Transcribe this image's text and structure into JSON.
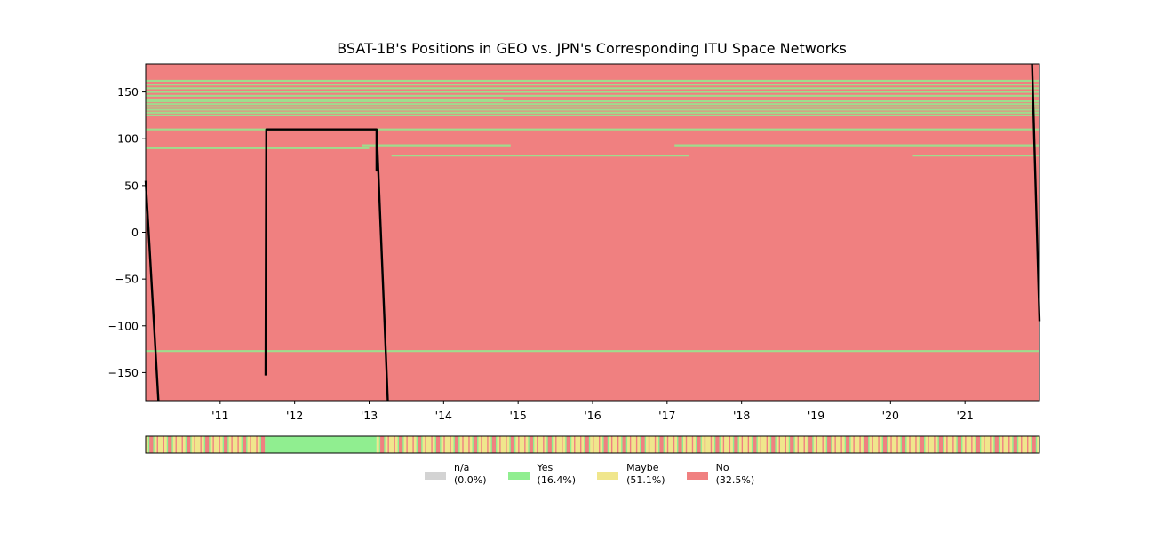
{
  "chart_data": {
    "type": "line",
    "title": "BSAT-1B's Positions in GEO vs. JPN's Corresponding ITU Space Networks",
    "xlabel": "",
    "ylabel": "",
    "xlim": [
      2010.0,
      2022.0
    ],
    "ylim": [
      -180,
      180
    ],
    "x_tick_values": [
      2011,
      2012,
      2013,
      2014,
      2015,
      2016,
      2017,
      2018,
      2019,
      2020,
      2021
    ],
    "x_tick_labels": [
      "'11",
      "'12",
      "'13",
      "'14",
      "'15",
      "'16",
      "'17",
      "'18",
      "'19",
      "'20",
      "'21"
    ],
    "y_ticks": [
      150,
      100,
      50,
      0,
      -50,
      -100,
      -150
    ],
    "y_tick_labels": [
      "150",
      "100",
      "50",
      "0",
      "−50",
      "−100",
      "−150"
    ],
    "background_color": "#f08080",
    "network_bands": [
      {
        "lon": 162,
        "start": 2010.0,
        "end": 2022.0
      },
      {
        "lon": 158,
        "start": 2010.0,
        "end": 2022.0
      },
      {
        "lon": 154,
        "start": 2010.0,
        "end": 2022.0
      },
      {
        "lon": 150,
        "start": 2010.0,
        "end": 2022.0
      },
      {
        "lon": 146,
        "start": 2010.0,
        "end": 2022.0
      },
      {
        "lon": 142,
        "start": 2010.0,
        "end": 2014.8
      },
      {
        "lon": 140,
        "start": 2010.0,
        "end": 2022.0
      },
      {
        "lon": 137,
        "start": 2010.0,
        "end": 2022.0
      },
      {
        "lon": 134,
        "start": 2010.0,
        "end": 2022.0
      },
      {
        "lon": 131,
        "start": 2010.0,
        "end": 2022.0
      },
      {
        "lon": 128,
        "start": 2010.0,
        "end": 2022.0
      },
      {
        "lon": 125,
        "start": 2010.0,
        "end": 2022.0
      },
      {
        "lon": 110,
        "start": 2010.0,
        "end": 2022.0
      },
      {
        "lon": 93,
        "start": 2012.9,
        "end": 2014.9
      },
      {
        "lon": 93,
        "start": 2017.1,
        "end": 2022.0
      },
      {
        "lon": 90,
        "start": 2010.0,
        "end": 2013.0
      },
      {
        "lon": 82,
        "start": 2013.3,
        "end": 2017.3
      },
      {
        "lon": 82,
        "start": 2020.3,
        "end": 2022.0
      },
      {
        "lon": -127,
        "start": 2010.0,
        "end": 2022.0
      }
    ],
    "series": [
      {
        "points": [
          [
            2010.0,
            55
          ],
          [
            2010.17,
            -180
          ],
          [
            2010.16,
            180
          ],
          [
            2010.41,
            -180
          ],
          [
            2010.4,
            180
          ],
          [
            2010.65,
            -180
          ],
          [
            2010.64,
            180
          ],
          [
            2010.89,
            -180
          ],
          [
            2010.88,
            180
          ],
          [
            2011.13,
            -180
          ],
          [
            2011.12,
            180
          ],
          [
            2011.37,
            -180
          ],
          [
            2011.36,
            180
          ],
          [
            2011.61,
            -153
          ],
          [
            2011.62,
            110
          ],
          [
            2013.1,
            110
          ],
          [
            2013.1,
            66
          ],
          [
            2013.1,
            110
          ],
          [
            2013.25,
            -180
          ],
          [
            2013.5,
            180
          ],
          [
            2013.75,
            -180
          ],
          [
            2013.74,
            180
          ],
          [
            2013.99,
            -180
          ],
          [
            2013.98,
            180
          ],
          [
            2014.23,
            -180
          ],
          [
            2014.22,
            180
          ],
          [
            2014.47,
            -180
          ],
          [
            2014.46,
            180
          ],
          [
            2014.71,
            -180
          ],
          [
            2014.7,
            180
          ],
          [
            2014.95,
            -180
          ],
          [
            2014.94,
            180
          ],
          [
            2015.19,
            -180
          ],
          [
            2015.18,
            180
          ],
          [
            2015.43,
            -180
          ],
          [
            2015.42,
            180
          ],
          [
            2015.67,
            -180
          ],
          [
            2015.66,
            180
          ],
          [
            2015.91,
            -180
          ],
          [
            2015.9,
            180
          ],
          [
            2016.15,
            -180
          ],
          [
            2016.14,
            180
          ],
          [
            2016.39,
            -180
          ],
          [
            2016.38,
            180
          ],
          [
            2016.63,
            -180
          ],
          [
            2016.62,
            180
          ],
          [
            2016.87,
            -180
          ],
          [
            2016.86,
            180
          ],
          [
            2017.11,
            -180
          ],
          [
            2017.1,
            180
          ],
          [
            2017.35,
            -180
          ],
          [
            2017.34,
            180
          ],
          [
            2017.59,
            -180
          ],
          [
            2017.58,
            180
          ],
          [
            2017.83,
            -180
          ],
          [
            2017.82,
            180
          ],
          [
            2018.07,
            -180
          ],
          [
            2018.06,
            180
          ],
          [
            2018.31,
            -180
          ],
          [
            2018.3,
            180
          ],
          [
            2018.55,
            -180
          ],
          [
            2018.54,
            180
          ],
          [
            2018.79,
            -180
          ],
          [
            2018.78,
            180
          ],
          [
            2019.03,
            -180
          ],
          [
            2019.02,
            180
          ],
          [
            2019.27,
            -180
          ],
          [
            2019.26,
            180
          ],
          [
            2019.51,
            -180
          ],
          [
            2019.5,
            180
          ],
          [
            2019.75,
            -180
          ],
          [
            2019.74,
            180
          ],
          [
            2019.99,
            -180
          ],
          [
            2019.98,
            180
          ],
          [
            2020.23,
            -180
          ],
          [
            2020.22,
            180
          ],
          [
            2020.47,
            -180
          ],
          [
            2020.46,
            180
          ],
          [
            2020.71,
            -180
          ],
          [
            2020.7,
            180
          ],
          [
            2020.95,
            -180
          ],
          [
            2020.94,
            180
          ],
          [
            2021.19,
            -180
          ],
          [
            2021.18,
            180
          ],
          [
            2021.43,
            -180
          ],
          [
            2021.42,
            180
          ],
          [
            2021.67,
            -180
          ],
          [
            2021.66,
            180
          ],
          [
            2021.91,
            -180
          ],
          [
            2021.9,
            180
          ],
          [
            2022.0,
            -95
          ]
        ]
      }
    ],
    "status_strip": {
      "segments": [
        {
          "start": 2010.0,
          "end": 2011.6,
          "status": "mixed"
        },
        {
          "start": 2011.6,
          "end": 2013.1,
          "status": "yes"
        },
        {
          "start": 2013.1,
          "end": 2022.0,
          "status": "mixed"
        }
      ]
    },
    "legend": [
      {
        "key": "na",
        "label": "n/a",
        "pct": "(0.0%)",
        "color": "#d3d3d3"
      },
      {
        "key": "yes",
        "label": "Yes",
        "pct": "(16.4%)",
        "color": "#90ee90"
      },
      {
        "key": "maybe",
        "label": "Maybe",
        "pct": "(51.1%)",
        "color": "#f0e68c"
      },
      {
        "key": "no",
        "label": "No",
        "pct": "(32.5%)",
        "color": "#f08080"
      }
    ]
  }
}
